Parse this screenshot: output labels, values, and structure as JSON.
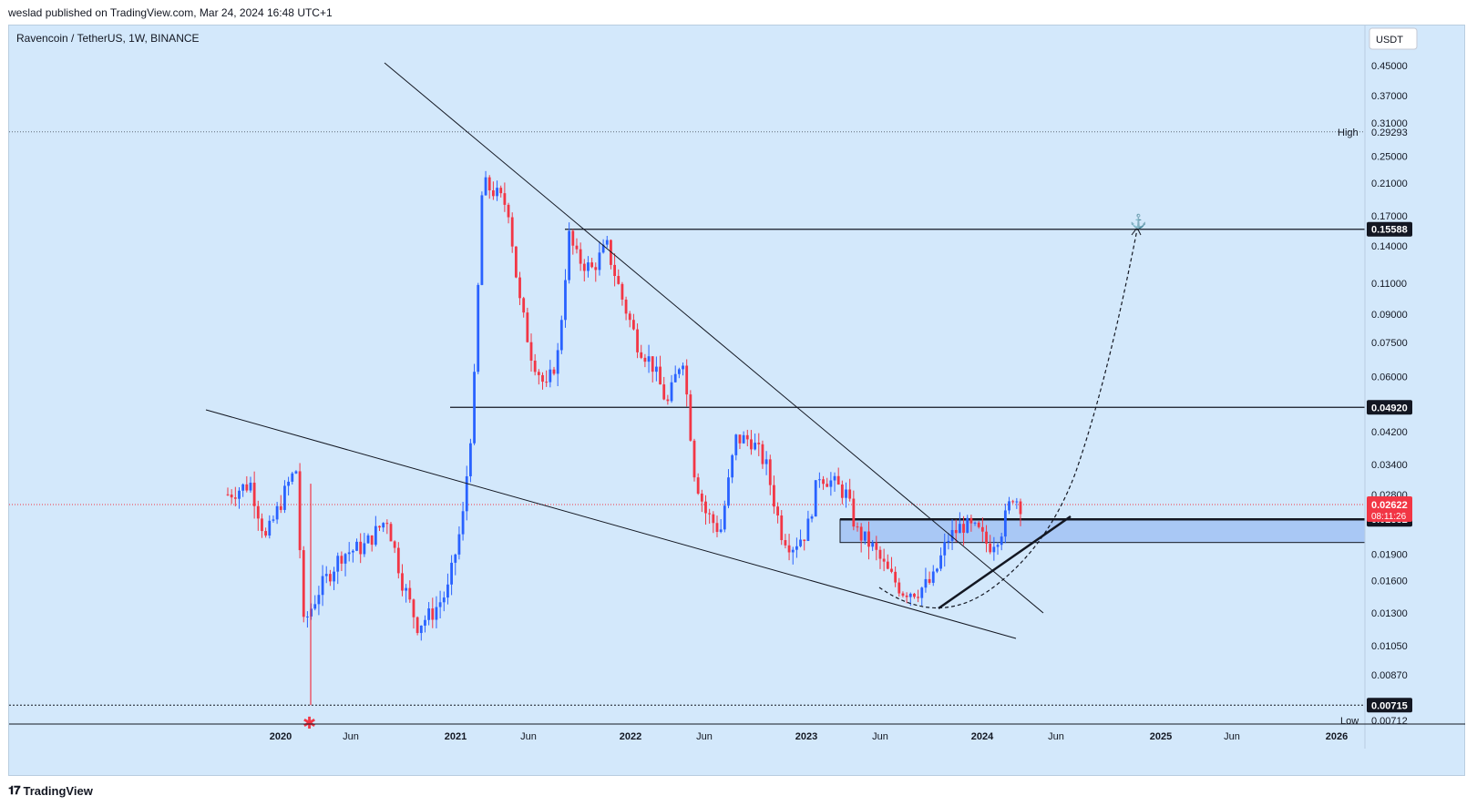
{
  "header": {
    "published_text": "weslad published on TradingView.com, Mar 24, 2024 16:48 UTC+1"
  },
  "symbol": {
    "title": "Ravencoin / TetherUS, 1W, BINANCE"
  },
  "footer": {
    "brand": "TradingView",
    "logo_icon": "tradingview-logo-icon"
  },
  "chart_data": {
    "type": "candlestick",
    "currency_label": "USDT",
    "scale": "log",
    "price_ticks": [
      "0.45000",
      "0.37000",
      "0.31000",
      "0.25000",
      "0.21000",
      "0.17000",
      "0.14000",
      "0.11000",
      "0.09000",
      "0.07500",
      "0.06000",
      "0.04200",
      "0.03400",
      "0.02800",
      "0.01900",
      "0.01600",
      "0.01300",
      "0.01050",
      "0.00870"
    ],
    "time_ticks": [
      "2020",
      "Jun",
      "2021",
      "Jun",
      "2022",
      "Jun",
      "2023",
      "Jun",
      "2024",
      "Jun",
      "2025",
      "Jun",
      "2026"
    ],
    "high": {
      "label": "High",
      "value": "0.29293"
    },
    "low": {
      "label": "Low",
      "value": "0.00712"
    },
    "last_price": {
      "value": "0.02622",
      "countdown": "08:11:26",
      "color": "#f23645"
    },
    "levels": [
      {
        "value": "0.15588"
      },
      {
        "value": "0.04920"
      },
      {
        "value": "0.02382"
      },
      {
        "value": "0.00715"
      }
    ],
    "colors": {
      "up": "#2962ff",
      "down": "#f23645",
      "background": "#d3e8fb",
      "zone": "#a9c8f5"
    },
    "annotations": [
      "falling wedge trendlines",
      "support/resistance zone 0.0205–0.0238",
      "dashed projected path to 0.15588",
      "anchor marker at target",
      "asterisk marker at low"
    ]
  }
}
